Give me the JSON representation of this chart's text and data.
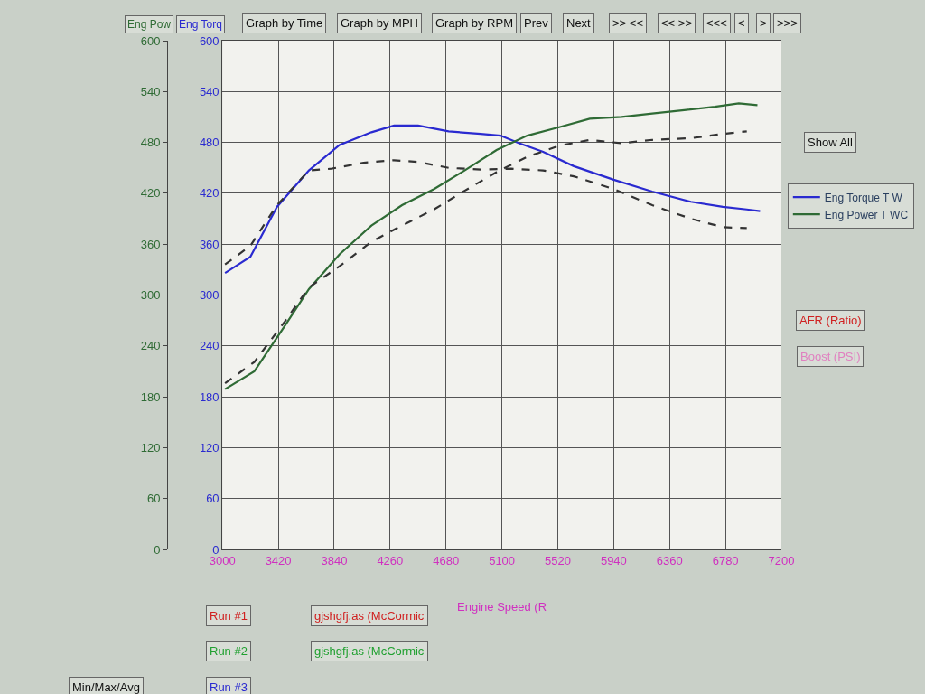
{
  "chart_data": {
    "type": "line",
    "xlabel": "Engine Speed (R",
    "ylabel": "Eng Torq",
    "y2label": "Eng Pow",
    "xlim": [
      3000,
      7200
    ],
    "xticks": [
      3000,
      3420,
      3840,
      4260,
      4680,
      5100,
      5520,
      5940,
      6360,
      6780,
      7200
    ],
    "ylim": [
      0,
      600
    ],
    "yticks": [
      0,
      60,
      120,
      180,
      240,
      300,
      360,
      420,
      480,
      540,
      600
    ],
    "y2lim": [
      0,
      600
    ],
    "y2ticks": [
      0,
      60,
      120,
      180,
      240,
      300,
      360,
      420,
      480,
      540,
      600
    ],
    "grid": true,
    "legend": "right",
    "marker": "none",
    "series": [
      {
        "name": "Eng Torque T W",
        "color": "#2a2ad0",
        "axis": "y",
        "line_style": "solid",
        "x": [
          3020,
          3210,
          3410,
          3650,
          3880,
          4120,
          4290,
          4470,
          4700,
          4940,
          5090,
          5230,
          5410,
          5640,
          5940,
          6230,
          6520,
          6760,
          6940,
          7040
        ],
        "values": [
          326,
          345,
          404,
          447,
          477,
          492,
          500,
          500,
          493,
          490,
          488,
          479,
          469,
          452,
          436,
          422,
          410,
          404,
          401,
          399
        ]
      },
      {
        "name": "Eng Power T WC",
        "color": "#2f6b35",
        "axis": "y2",
        "line_style": "solid",
        "x": [
          3020,
          3240,
          3470,
          3650,
          3880,
          4120,
          4350,
          4590,
          4820,
          5060,
          5290,
          5530,
          5760,
          6000,
          6230,
          6470,
          6700,
          6880,
          7020
        ],
        "values": [
          189,
          210,
          264,
          307,
          348,
          382,
          406,
          425,
          447,
          471,
          488,
          498,
          508,
          510,
          514,
          518,
          522,
          526,
          524
        ]
      },
      {
        "color": "#333333",
        "axis": "y",
        "line_style": "dashed",
        "x": [
          3020,
          3210,
          3410,
          3650,
          3820,
          4060,
          4290,
          4470,
          4700,
          4940,
          5170,
          5410,
          5640,
          5940,
          6230,
          6520,
          6760,
          6940
        ],
        "values": [
          336,
          358,
          406,
          447,
          449,
          456,
          459,
          457,
          450,
          448,
          449,
          447,
          440,
          425,
          406,
          390,
          380,
          379
        ]
      },
      {
        "color": "#333333",
        "axis": "y2",
        "line_style": "dashed",
        "x": [
          3020,
          3240,
          3470,
          3650,
          3880,
          4120,
          4350,
          4590,
          4820,
          5060,
          5290,
          5530,
          5760,
          6000,
          6230,
          6520,
          6760,
          6940
        ],
        "values": [
          196,
          221,
          269,
          309,
          334,
          363,
          382,
          401,
          423,
          445,
          463,
          476,
          483,
          479,
          483,
          485,
          490,
          493
        ]
      }
    ],
    "annotations": [
      "Graph by Time",
      "Graph by MPH",
      "Graph by RPM",
      "Prev",
      "Next",
      ">> <<",
      "<< >>",
      "<<<",
      "<",
      ">",
      ">>>",
      "Show All",
      "AFR (Ratio)",
      "Boost (PSI)",
      "Run #1",
      "gjshgfj.as (McCormic",
      "Run #2",
      "gjshgfj.as (McCormic",
      "Run #3",
      "Min/Max/Avg"
    ]
  }
}
